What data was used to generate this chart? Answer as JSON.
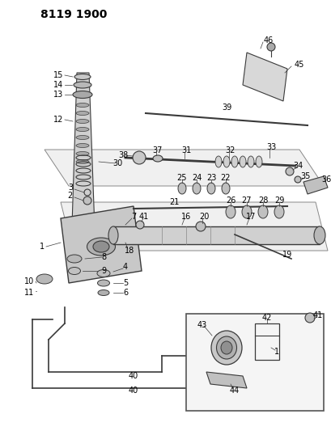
{
  "title": "8119 1900",
  "bg_color": "#ffffff",
  "line_color": "#3a3a3a",
  "text_color": "#000000",
  "title_fontsize": 10,
  "label_fontsize": 7
}
